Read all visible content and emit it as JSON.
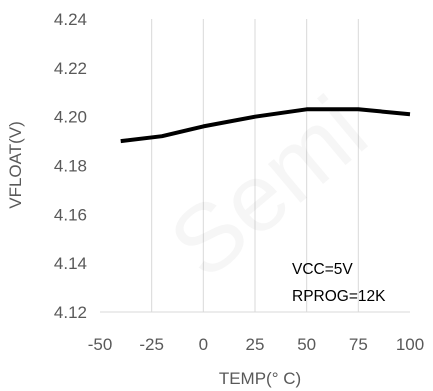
{
  "chart_data": {
    "type": "line",
    "xlabel": "TEMP(° C)",
    "ylabel": "VFLOAT(V)",
    "xlim": [
      -50,
      100
    ],
    "ylim": [
      4.12,
      4.24
    ],
    "x_ticks": [
      "-50",
      "-25",
      "0",
      "25",
      "50",
      "75",
      "100"
    ],
    "y_ticks": [
      "4.12",
      "4.14",
      "4.16",
      "4.18",
      "4.20",
      "4.22",
      "4.24"
    ],
    "grid": "vertical",
    "series": [
      {
        "x": [
          -40,
          -20,
          0,
          25,
          50,
          75,
          100
        ],
        "y": [
          4.19,
          4.192,
          4.196,
          4.2,
          4.203,
          4.203,
          4.201
        ],
        "color": "#000000"
      }
    ],
    "annotations": [
      "VCC=5V",
      "RPROG=12K"
    ]
  },
  "watermark": "Semi"
}
